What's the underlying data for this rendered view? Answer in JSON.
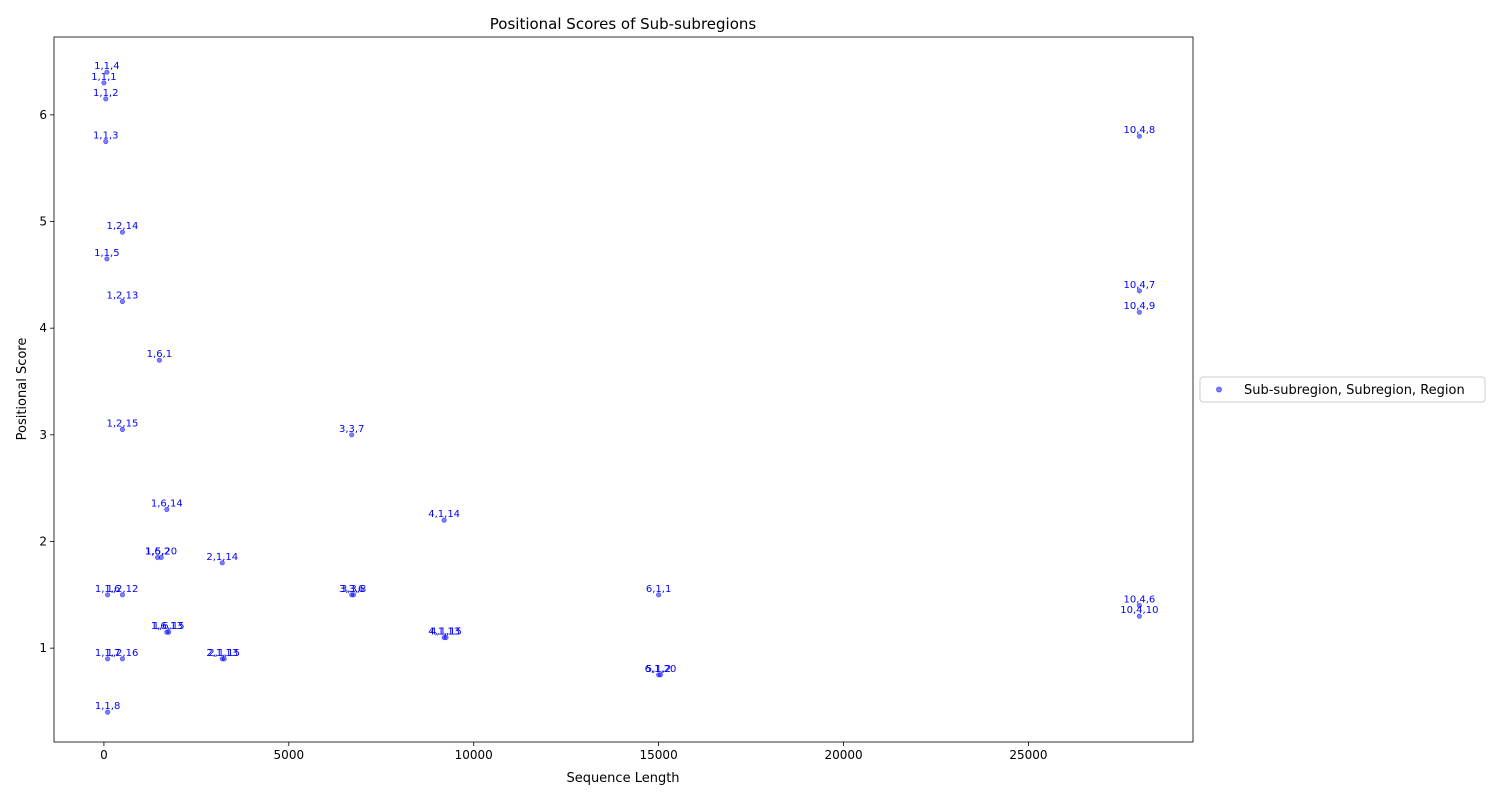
{
  "chart_data": {
    "type": "scatter",
    "title": "Positional Scores of Sub-subregions",
    "xlabel": "Sequence Length",
    "ylabel": "Positional Score",
    "xlim": [
      -1350,
      29450
    ],
    "ylim": [
      0.12,
      6.73
    ],
    "xticks": [
      0,
      5000,
      10000,
      15000,
      20000,
      25000
    ],
    "yticks": [
      1,
      2,
      3,
      4,
      5,
      6
    ],
    "grid": false,
    "legend": {
      "position": "right-outside",
      "entries": [
        "Sub-subregion, Subregion, Region"
      ]
    },
    "marker_color": "#0000ff",
    "label_color": "#0000ff",
    "series": [
      {
        "name": "Sub-subregion, Subregion, Region",
        "points": [
          {
            "x": 80,
            "y": 6.4,
            "label": "1,1,4"
          },
          {
            "x": 0,
            "y": 6.3,
            "label": "1,1,1"
          },
          {
            "x": 50,
            "y": 6.15,
            "label": "1,1,2"
          },
          {
            "x": 50,
            "y": 5.75,
            "label": "1,1,3"
          },
          {
            "x": 28000,
            "y": 5.8,
            "label": "10,4,8"
          },
          {
            "x": 500,
            "y": 4.9,
            "label": "1,2,14"
          },
          {
            "x": 80,
            "y": 4.65,
            "label": "1,1,5"
          },
          {
            "x": 28000,
            "y": 4.35,
            "label": "10,4,7"
          },
          {
            "x": 500,
            "y": 4.25,
            "label": "1,2,13"
          },
          {
            "x": 28000,
            "y": 4.15,
            "label": "10,4,9"
          },
          {
            "x": 1500,
            "y": 3.7,
            "label": "1,6,1"
          },
          {
            "x": 500,
            "y": 3.05,
            "label": "1,2,15"
          },
          {
            "x": 6700,
            "y": 3.0,
            "label": "3,3,7"
          },
          {
            "x": 1700,
            "y": 2.3,
            "label": "1,6,14"
          },
          {
            "x": 9200,
            "y": 2.2,
            "label": "4,1,14"
          },
          {
            "x": 1450,
            "y": 1.85,
            "label": "1,6,2"
          },
          {
            "x": 1550,
            "y": 1.85,
            "label": "1,5,20"
          },
          {
            "x": 3200,
            "y": 1.8,
            "label": "2,1,14"
          },
          {
            "x": 100,
            "y": 1.5,
            "label": "1,1,6"
          },
          {
            "x": 500,
            "y": 1.5,
            "label": "1,2,12"
          },
          {
            "x": 6700,
            "y": 1.5,
            "label": "3,3,6"
          },
          {
            "x": 6750,
            "y": 1.5,
            "label": "3,3,8"
          },
          {
            "x": 15000,
            "y": 1.5,
            "label": "6,1,1"
          },
          {
            "x": 28000,
            "y": 1.4,
            "label": "10,4,6"
          },
          {
            "x": 28000,
            "y": 1.3,
            "label": "10,4,10"
          },
          {
            "x": 1700,
            "y": 1.15,
            "label": "1,6,13"
          },
          {
            "x": 1750,
            "y": 1.15,
            "label": "1,6,15"
          },
          {
            "x": 9200,
            "y": 1.1,
            "label": "4,1,13"
          },
          {
            "x": 9250,
            "y": 1.1,
            "label": "4,1,15"
          },
          {
            "x": 100,
            "y": 0.9,
            "label": "1,1,7"
          },
          {
            "x": 500,
            "y": 0.9,
            "label": "1,2,16"
          },
          {
            "x": 3200,
            "y": 0.9,
            "label": "2,1,13"
          },
          {
            "x": 3250,
            "y": 0.9,
            "label": "2,1,15"
          },
          {
            "x": 15000,
            "y": 0.75,
            "label": "5,1,2"
          },
          {
            "x": 15050,
            "y": 0.75,
            "label": "6,1,20"
          },
          {
            "x": 100,
            "y": 0.4,
            "label": "1,1,8"
          }
        ]
      }
    ]
  }
}
